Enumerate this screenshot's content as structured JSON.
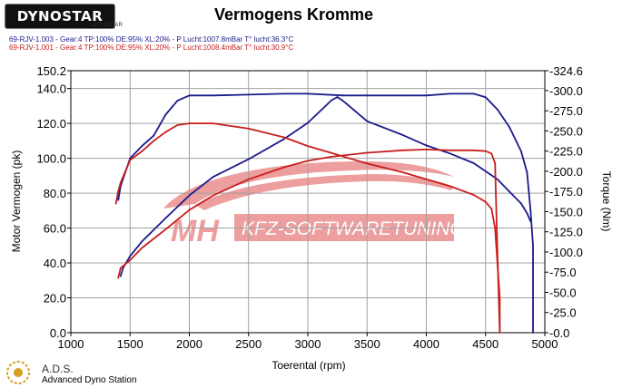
{
  "header": {
    "logo_text": "DYNOSTAR",
    "logo_subtext": "DYNOSTAR"
  },
  "run_info": [
    "69-RJV-1.003 - Gear:4 TP:100% DE:95% XL:20%   - P Lucht:1007.8mBar T° lucht:36.3°C",
    "69-RJV-1.001 - Gear:4 TP:100% DE:95% XL:20%   - P Lucht:1008.4mBar T° lucht:30.9°C"
  ],
  "watermark": {
    "brand": "MH",
    "text": "KFZ-SOFTWARETUNING"
  },
  "footer": {
    "name": "A.D.S.",
    "subtitle": "Advanced Dyno Station"
  },
  "colors": {
    "run_1_003": "#1a1a8c",
    "run_1_001": "#c81e1e",
    "grid": "#999999",
    "watermark": "#e05050"
  },
  "chart_data": {
    "type": "line",
    "title": "Vermogens Kromme",
    "xlabel": "Toerental (rpm)",
    "ylabel_left": "Motor Vermogen (pk)",
    "ylabel_right": "Torque (Nm)",
    "xlim": [
      1000,
      5000
    ],
    "ylim_left": [
      0,
      150.2
    ],
    "ylim_right": [
      0,
      324.6
    ],
    "x_ticks": [
      "1000",
      "1500",
      "2000",
      "2500",
      "3000",
      "3500",
      "4000",
      "4500",
      "5000"
    ],
    "y_left_ticks": [
      "0.0",
      "20.0",
      "40.0",
      "60.0",
      "80.0",
      "100.0",
      "120.0",
      "140.0",
      "150.2"
    ],
    "y_right_ticks": [
      "-0.0",
      "-25.0",
      "-50.0",
      "-75.0",
      "-100.0",
      "-125.0",
      "-150.0",
      "-175.0",
      "-200.0",
      "-225.0",
      "-250.0",
      "-275.0",
      "-300.0",
      "-324.6"
    ],
    "grid": true,
    "legend": "none",
    "series": [
      {
        "run": "69-RJV-1.003",
        "quantity": "power",
        "axis": "left",
        "color": "#1a1a8c",
        "x": [
          1400,
          1420,
          1440,
          1500,
          1600,
          1700,
          1800,
          1900,
          2000,
          2200,
          2500,
          2800,
          3000,
          3300,
          3500,
          3800,
          4000,
          4200,
          4400,
          4500,
          4600,
          4700,
          4800,
          4850,
          4880,
          4900,
          4900
        ],
        "y": [
          76,
          84,
          88,
          100,
          107,
          113,
          125,
          133,
          136,
          136,
          136.5,
          137,
          137,
          136,
          136,
          136,
          136,
          137,
          137,
          135,
          128,
          118,
          104,
          92,
          70,
          50,
          0
        ]
      },
      {
        "run": "69-RJV-1.003",
        "quantity": "torque",
        "axis": "right",
        "color": "#1a1a8c",
        "x": [
          1420,
          1440,
          1500,
          1600,
          1800,
          2000,
          2200,
          2500,
          2800,
          3000,
          3200,
          3250,
          3300,
          3500,
          3800,
          4000,
          4200,
          4400,
          4600,
          4700,
          4800,
          4850,
          4880
        ],
        "y": [
          70,
          80,
          95,
          113,
          142,
          170,
          193,
          215,
          240,
          260,
          288,
          292,
          287,
          262,
          245,
          232,
          222,
          210,
          190,
          175,
          160,
          148,
          138
        ]
      },
      {
        "run": "69-RJV-1.001",
        "quantity": "power",
        "axis": "left",
        "color": "#c81e1e",
        "x": [
          1380,
          1400,
          1420,
          1500,
          1600,
          1700,
          1800,
          1900,
          2000,
          2200,
          2500,
          2800,
          3000,
          3200,
          3500,
          3800,
          4000,
          4200,
          4400,
          4500,
          4550,
          4580,
          4600,
          4620,
          4620
        ],
        "y": [
          74,
          81,
          86,
          99,
          104,
          110,
          115,
          119,
          120,
          120,
          117,
          112,
          107,
          103,
          97,
          92,
          88,
          84,
          79,
          75,
          71,
          60,
          40,
          20,
          0
        ]
      },
      {
        "run": "69-RJV-1.001",
        "quantity": "torque",
        "axis": "right",
        "color": "#c81e1e",
        "x": [
          1400,
          1420,
          1500,
          1600,
          1800,
          2000,
          2200,
          2500,
          2800,
          3000,
          3200,
          3500,
          3800,
          4000,
          4200,
          4400,
          4500,
          4550,
          4580,
          4600,
          4620
        ],
        "y": [
          68,
          80,
          90,
          105,
          128,
          152,
          170,
          190,
          205,
          213,
          218,
          223,
          226,
          227,
          226,
          226,
          225,
          222,
          210,
          100,
          0
        ]
      }
    ]
  }
}
